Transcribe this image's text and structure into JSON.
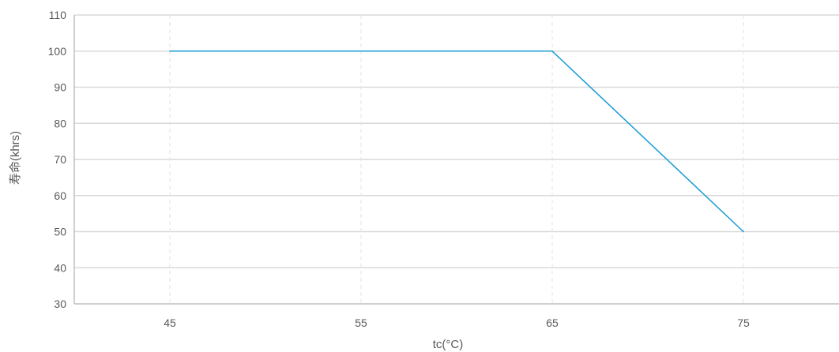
{
  "chart_data": {
    "type": "line",
    "x": [
      45,
      65,
      75
    ],
    "series": [
      {
        "values": [
          100,
          100,
          50
        ]
      }
    ],
    "x_ticks": [
      45,
      55,
      65,
      75
    ],
    "y_ticks": [
      30,
      40,
      50,
      60,
      70,
      80,
      90,
      100,
      110
    ],
    "xlim": [
      40,
      80
    ],
    "ylim": [
      30,
      110
    ],
    "xlabel": "tc(°C)",
    "ylabel": "寿命(khrs)",
    "grid": "horizontal solid, vertical dashed",
    "legend": "none",
    "colors": {
      "line": "#1a9bd7",
      "grid": "#d9d9d9",
      "axis": "#bfbfbf",
      "text": "#595959"
    }
  }
}
